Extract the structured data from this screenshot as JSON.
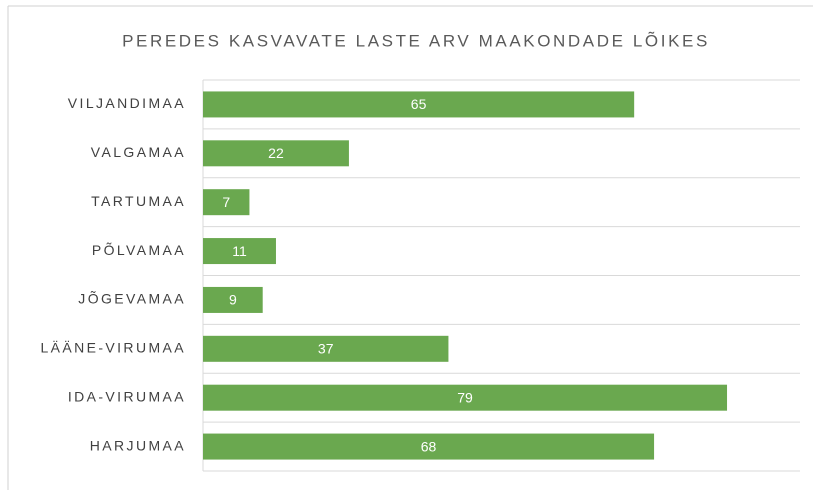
{
  "chart_data": {
    "type": "barh",
    "title": "PEREDES KASVAVATE LASTE ARV MAAKONDADE LÕIKES",
    "categories": [
      "VILJANDIMAA",
      "VALGAMAA",
      "TARTUMAA",
      "PÕLVAMAA",
      "JÕGEVAMAA",
      "LÄÄNE-VIRUMAA",
      "IDA-VIRUMAA",
      "HARJUMAA"
    ],
    "values": [
      65,
      22,
      7,
      11,
      9,
      37,
      79,
      68
    ],
    "color": "#6aa84f",
    "xlim": [
      0,
      90
    ],
    "grid": true
  }
}
